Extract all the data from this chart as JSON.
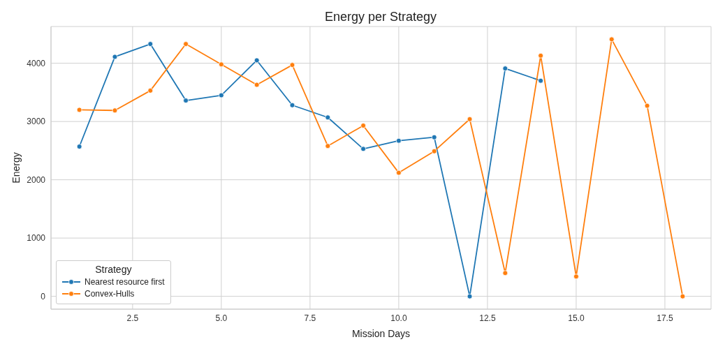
{
  "chart_data": {
    "type": "line",
    "title": "Energy per Strategy",
    "xlabel": "Mission Days",
    "ylabel": "Energy",
    "legend_title": "Strategy",
    "legend": "bottom left",
    "grid": true,
    "marker": "circle",
    "line_style": "solid",
    "x": [
      1,
      2,
      3,
      4,
      5,
      6,
      7,
      8,
      9,
      10,
      11,
      12,
      13,
      14,
      15,
      16,
      17,
      18
    ],
    "xlim": [
      0.2,
      18.8
    ],
    "xticks": [
      2.5,
      {
        "value": 5,
        "label": "5.0"
      },
      7.5,
      {
        "value": 10,
        "label": "10.0"
      },
      12.5,
      {
        "value": 15,
        "label": "15.0"
      },
      17.5
    ],
    "ylim": [
      -220,
      4630
    ],
    "yticks": [
      0,
      1000,
      2000,
      3000,
      4000
    ],
    "series": [
      {
        "name": "Nearest resource first",
        "color": "#1f77b4",
        "values": [
          2570,
          4110,
          4330,
          3360,
          3450,
          4050,
          3280,
          3070,
          2530,
          2670,
          2730,
          0,
          3910,
          3700,
          null,
          null,
          null,
          null
        ]
      },
      {
        "name": "Convex-Hulls",
        "color": "#ff7f0e",
        "values": [
          3200,
          3190,
          3530,
          4330,
          3980,
          3630,
          3970,
          2580,
          2930,
          2120,
          2490,
          3040,
          400,
          4130,
          340,
          4410,
          3270,
          0
        ]
      }
    ]
  }
}
